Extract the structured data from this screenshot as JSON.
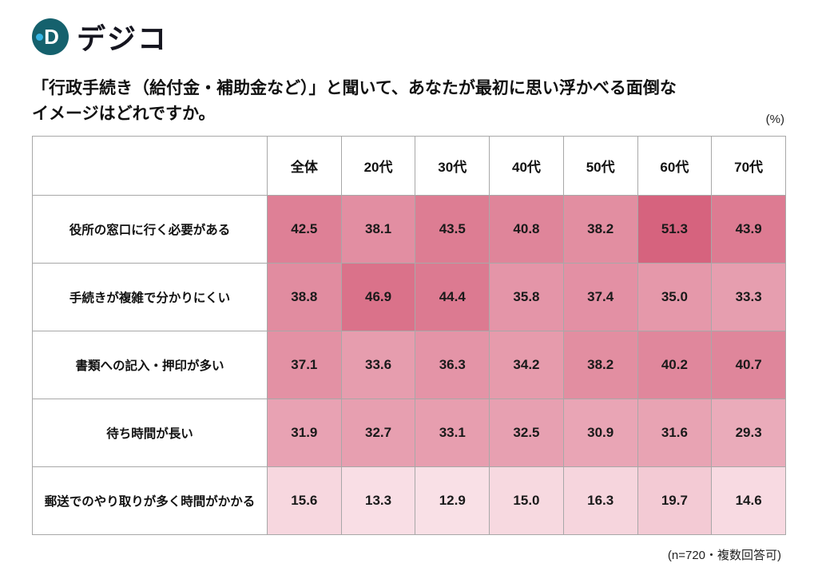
{
  "logo": {
    "text": "デジコ",
    "icon_letter": "D"
  },
  "title": {
    "line1": "「行政手続き（給付金・補助金など）」と聞いて、あなたが最初に思い浮かべる面倒な",
    "line2": "イメージはどれですか。"
  },
  "unit_label": "(%)",
  "footnote": "(n=720・複数回答可)",
  "chart_data": {
    "type": "heatmap",
    "title": "「行政手続き（給付金・補助金など）」と聞いて、あなたが最初に思い浮かべる面倒なイメージはどれですか。",
    "unit": "%",
    "sample_note": "n=720・複数回答可",
    "columns": [
      "全体",
      "20代",
      "30代",
      "40代",
      "50代",
      "60代",
      "70代"
    ],
    "rows": [
      {
        "label": "役所の窓口に行く必要がある",
        "values": [
          42.5,
          38.1,
          43.5,
          40.8,
          38.2,
          51.3,
          43.9
        ]
      },
      {
        "label": "手続きが複雑で分かりにくい",
        "values": [
          38.8,
          46.9,
          44.4,
          35.8,
          37.4,
          35.0,
          33.3
        ]
      },
      {
        "label": "書類への記入・押印が多い",
        "values": [
          37.1,
          33.6,
          36.3,
          34.2,
          38.2,
          40.2,
          40.7
        ]
      },
      {
        "label": "待ち時間が長い",
        "values": [
          31.9,
          32.7,
          33.1,
          32.5,
          30.9,
          31.6,
          29.3
        ]
      },
      {
        "label": "郵送でのやり取りが多く時間がかかる",
        "values": [
          15.6,
          13.3,
          12.9,
          15.0,
          16.3,
          19.7,
          14.6
        ]
      }
    ],
    "color_scale": {
      "min_value": 10,
      "max_value": 52,
      "min_color": "#fce9ee",
      "max_color": "#d5617c"
    }
  }
}
